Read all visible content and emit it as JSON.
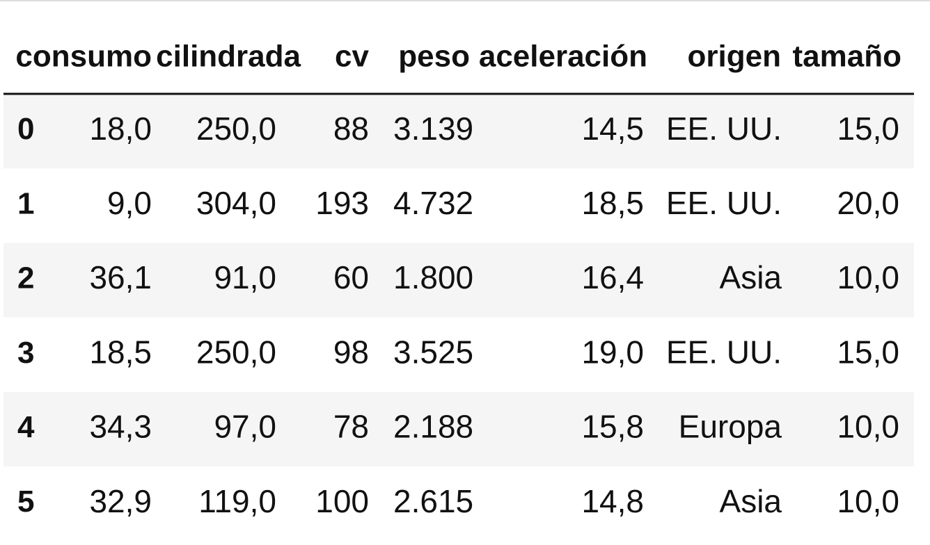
{
  "table": {
    "columns": [
      "consumo",
      "cilindrada",
      "cv",
      "peso",
      "aceleración",
      "origen",
      "tamaño"
    ],
    "rows": [
      {
        "index": "0",
        "cells": [
          "18,0",
          "250,0",
          "88",
          "3.139",
          "14,5",
          "EE. UU.",
          "15,0"
        ]
      },
      {
        "index": "1",
        "cells": [
          "9,0",
          "304,0",
          "193",
          "4.732",
          "18,5",
          "EE. UU.",
          "20,0"
        ]
      },
      {
        "index": "2",
        "cells": [
          "36,1",
          "91,0",
          "60",
          "1.800",
          "16,4",
          "Asia",
          "10,0"
        ]
      },
      {
        "index": "3",
        "cells": [
          "18,5",
          "250,0",
          "98",
          "3.525",
          "19,0",
          "EE. UU.",
          "15,0"
        ]
      },
      {
        "index": "4",
        "cells": [
          "34,3",
          "97,0",
          "78",
          "2.188",
          "15,8",
          "Europa",
          "10,0"
        ]
      },
      {
        "index": "5",
        "cells": [
          "32,9",
          "119,0",
          "100",
          "2.615",
          "14,8",
          "Asia",
          "10,0"
        ]
      }
    ]
  }
}
